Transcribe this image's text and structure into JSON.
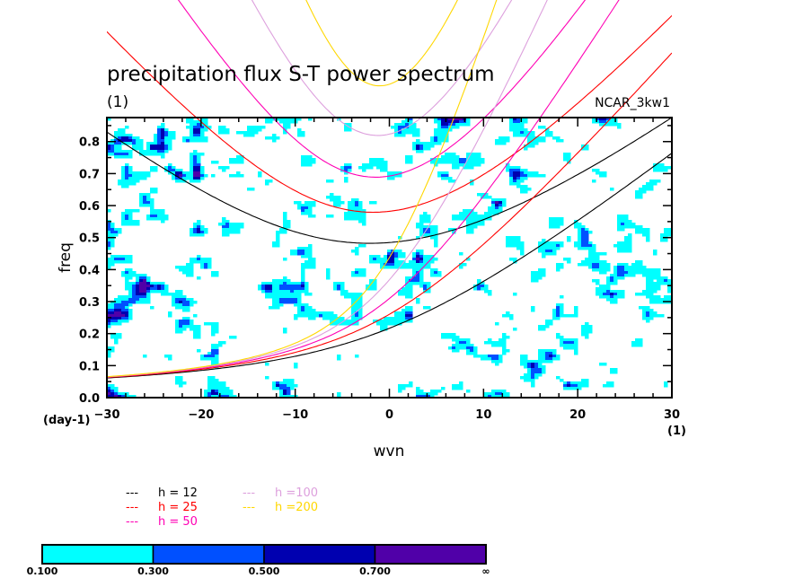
{
  "chart_data": {
    "type": "heatmap",
    "title": "precipitation flux S-T power spectrum",
    "subtitle": "(1)",
    "run_label": "NCAR_3kw1",
    "xlabel": "wvn",
    "ylabel": "freq",
    "x_unit": "(1)",
    "y_unit": "(day-1)",
    "xlim": [
      -30,
      30
    ],
    "ylim": [
      0,
      0.875
    ],
    "x_ticks": [
      "-30",
      "-20",
      "-10",
      "0",
      "10",
      "20",
      "30"
    ],
    "y_ticks": [
      "0.0",
      "0.1",
      "0.2",
      "0.3",
      "0.4",
      "0.5",
      "0.6",
      "0.7",
      "0.8"
    ],
    "contour_levels": [
      0.1,
      0.3,
      0.5,
      0.7
    ],
    "colorbar": {
      "labels": [
        "0.100",
        "0.300",
        "0.500",
        "0.700",
        "∞"
      ],
      "colors": [
        "#00ffff",
        "#0050ff",
        "#0000b0",
        "#5000a8"
      ]
    },
    "dispersion_curves": [
      {
        "label": "h = 12",
        "h": 12,
        "color": "#000000"
      },
      {
        "label": "h = 25",
        "h": 25,
        "color": "#ff0000"
      },
      {
        "label": "h = 50",
        "h": 50,
        "color": "#ff00b4"
      },
      {
        "label": "h =100",
        "h": 100,
        "color": "#dda0dd"
      },
      {
        "label": "h =200",
        "h": 200,
        "color": "#ffd700"
      }
    ],
    "legend_marker": "---",
    "legend_placement": "bottom"
  }
}
